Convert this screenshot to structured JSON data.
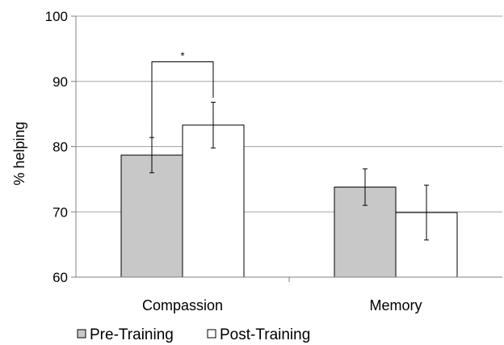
{
  "chart_data": {
    "type": "bar",
    "title": "",
    "xlabel": "",
    "ylabel": "% helping",
    "ylim": [
      60,
      100
    ],
    "yticks": [
      60,
      70,
      80,
      90,
      100
    ],
    "categories": [
      "Compassion",
      "Memory"
    ],
    "series": [
      {
        "name": "Pre-Training",
        "color": "#c8c8c8",
        "values": [
          78.7,
          73.8
        ],
        "errors": [
          2.7,
          2.8
        ]
      },
      {
        "name": "Post-Training",
        "color": "#ffffff",
        "values": [
          83.3,
          69.9
        ],
        "errors": [
          3.5,
          4.2
        ]
      }
    ],
    "grid": true,
    "legend_position": "bottom-left",
    "annotations": [
      {
        "text": "*",
        "category": "Compassion",
        "between": [
          "Pre-Training",
          "Post-Training"
        ],
        "level": 93
      }
    ]
  }
}
